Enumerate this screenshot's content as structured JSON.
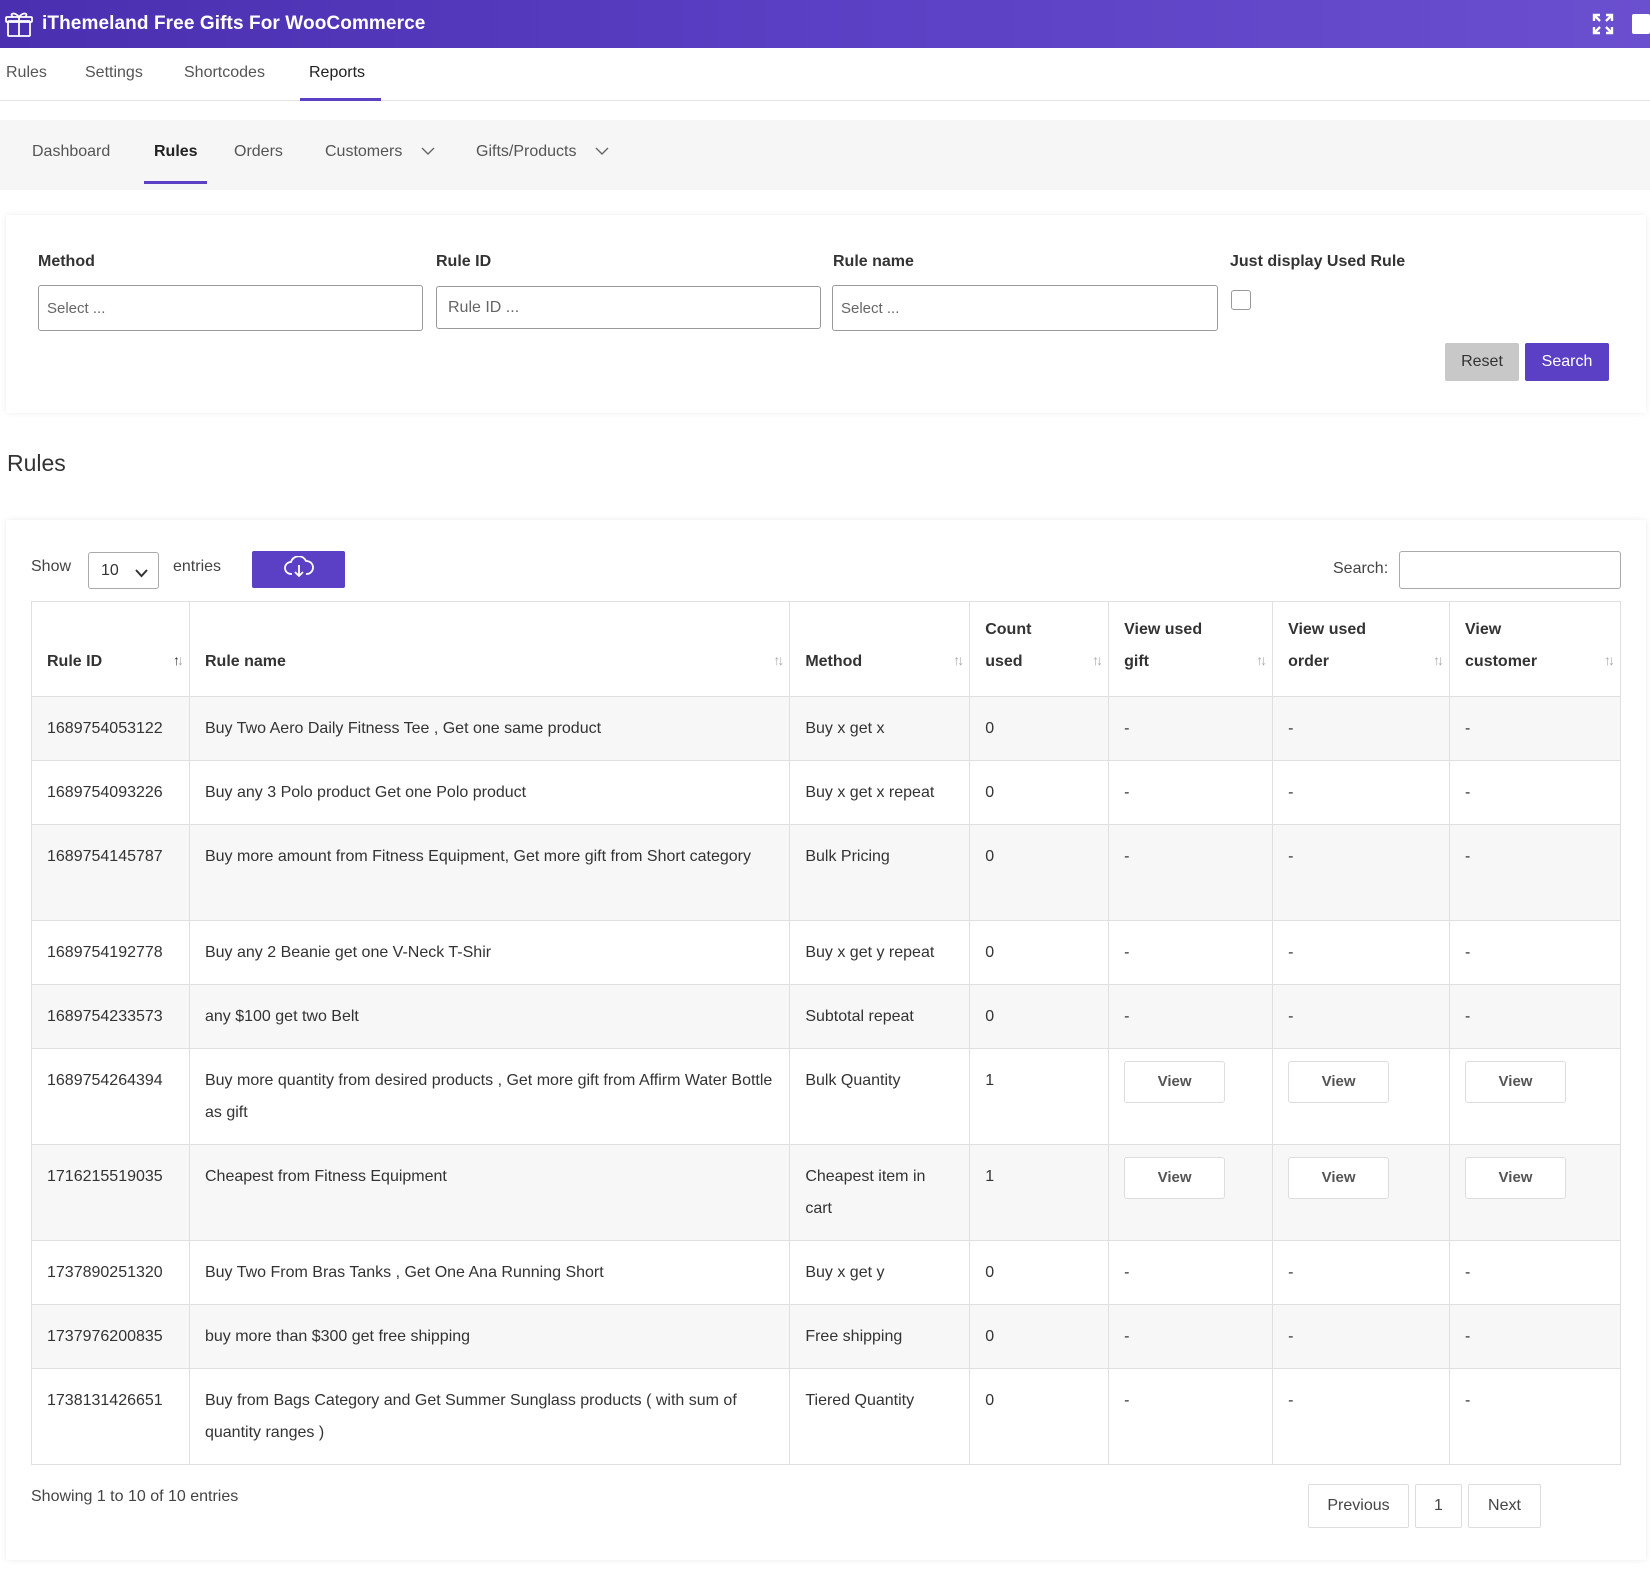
{
  "app": {
    "title": "iThemeland Free Gifts For WooCommerce",
    "accent_color": "#5b3fc4",
    "logo_icon": "gift-box-icon",
    "right_icons": [
      "fullscreen-icon",
      "book-icon"
    ]
  },
  "main_tabs": [
    {
      "label": "Rules",
      "active": false
    },
    {
      "label": "Settings",
      "active": false
    },
    {
      "label": "Shortcodes",
      "active": false
    },
    {
      "label": "Reports",
      "active": true
    }
  ],
  "sub_tabs": [
    {
      "label": "Dashboard",
      "active": false
    },
    {
      "label": "Rules",
      "active": true
    },
    {
      "label": "Orders",
      "active": false
    },
    {
      "label": "Customers",
      "active": false,
      "dropdown": true
    },
    {
      "label": "Gifts/Products",
      "active": false,
      "dropdown": true
    }
  ],
  "filters": {
    "method_label": "Method",
    "method_placeholder": "Select ...",
    "rule_id_label": "Rule ID",
    "rule_id_placeholder": "Rule ID ...",
    "rule_name_label": "Rule name",
    "rule_name_placeholder": "Select ...",
    "used_rule_label": "Just display Used Rule",
    "used_rule_checked": false,
    "reset_label": "Reset",
    "search_label": "Search"
  },
  "section_title": "Rules",
  "table_controls": {
    "show_label": "Show",
    "entries_value": "10",
    "entries_label": "entries",
    "export_icon": "cloud-download-icon",
    "search_label": "Search:",
    "search_value": ""
  },
  "table": {
    "headers": [
      {
        "line1": "Rule ID",
        "line2": ""
      },
      {
        "line1": "Rule name",
        "line2": ""
      },
      {
        "line1": "Method",
        "line2": ""
      },
      {
        "line1": "Count",
        "line2": "used"
      },
      {
        "line1": "View used",
        "line2": "gift"
      },
      {
        "line1": "View used",
        "line2": "order"
      },
      {
        "line1": "View",
        "line2": "customer"
      }
    ],
    "view_label": "View",
    "dash": "-",
    "rows": [
      {
        "id": "1689754053122",
        "name": "Buy Two Aero Daily Fitness Tee , Get one same product",
        "method": "Buy x get x",
        "count": "0",
        "has_view": false
      },
      {
        "id": "1689754093226",
        "name": "Buy any 3 Polo product Get one Polo product",
        "method": "Buy x get x repeat",
        "count": "0",
        "has_view": false
      },
      {
        "id": "1689754145787",
        "name": "Buy more amount from Fitness Equipment, Get more gift from Short category",
        "method": "Bulk Pricing",
        "count": "0",
        "has_view": false
      },
      {
        "id": "1689754192778",
        "name": "Buy any 2 Beanie get one V-Neck T-Shir",
        "method": "Buy x get y repeat",
        "count": "0",
        "has_view": false
      },
      {
        "id": "1689754233573",
        "name": "any $100 get two Belt",
        "method": "Subtotal repeat",
        "count": "0",
        "has_view": false
      },
      {
        "id": "1689754264394",
        "name": "Buy more quantity from desired products , Get more gift from Affirm Water Bottle as gift",
        "method": "Bulk Quantity",
        "count": "1",
        "has_view": true
      },
      {
        "id": "1716215519035",
        "name": "Cheapest from Fitness Equipment",
        "method": "Cheapest item in cart",
        "count": "1",
        "has_view": true
      },
      {
        "id": "1737890251320",
        "name": "Buy Two From Bras Tanks , Get One Ana Running Short",
        "method": "Buy x get y",
        "count": "0",
        "has_view": false
      },
      {
        "id": "1737976200835",
        "name": "buy more than $300 get free shipping",
        "method": "Free shipping",
        "count": "0",
        "has_view": false
      },
      {
        "id": "1738131426651",
        "name": "Buy from Bags Category and Get Summer Sunglass products ( with sum of quantity ranges )",
        "method": "Tiered Quantity",
        "count": "0",
        "has_view": false
      }
    ]
  },
  "footer": {
    "info": "Showing 1 to 10 of 10 entries",
    "previous": "Previous",
    "page": "1",
    "next": "Next"
  }
}
